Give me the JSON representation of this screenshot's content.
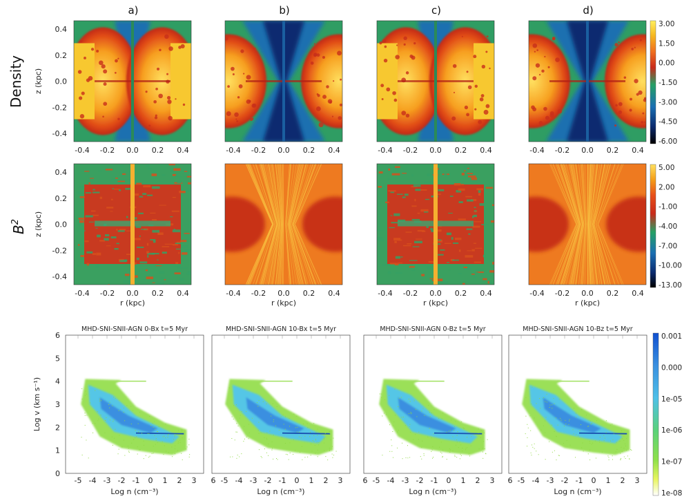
{
  "column_labels": [
    "a)",
    "b)",
    "c)",
    "d)"
  ],
  "row_labels": {
    "density": "Density",
    "bsq_base": "B",
    "bsq_sup": "2"
  },
  "maps": {
    "x_ticks": [
      "-0.4",
      "-0.2",
      "0.0",
      "0.2",
      "0.4"
    ],
    "z_ticks": [
      "0.4",
      "0.2",
      "0.0",
      "-0.2",
      "-0.4"
    ],
    "z_label": "z (kpc)",
    "r_label": "r (kpc)"
  },
  "colorbars": {
    "density": [
      "3.00",
      "1.50",
      "0.00",
      "-1.50",
      "-3.00",
      "-4.50",
      "-6.00"
    ],
    "bsq": [
      "5.00",
      "2.00",
      "-1.00",
      "-4.00",
      "-7.00",
      "-10.00",
      "-13.00"
    ],
    "phase": [
      "0.001",
      "0.000",
      "1e-05",
      "1e-06",
      "1e-07",
      "1e-08"
    ]
  },
  "colors": {
    "density_map": [
      "#000000",
      "#0b2a6e",
      "#1a6fb3",
      "#25a065",
      "#c92a1a",
      "#f07020",
      "#f6b820",
      "#fff060"
    ],
    "bsq_map": [
      "#000000",
      "#0b2a6e",
      "#1a6fb3",
      "#25a065",
      "#c92a1a",
      "#e8501a",
      "#f5a01a",
      "#ffe060"
    ],
    "phase_map": [
      "#ffffff",
      "#e8f560",
      "#8ee04a",
      "#5ad27a",
      "#4ec0e8",
      "#3a90e0",
      "#1050d0"
    ]
  },
  "phase": {
    "titles": [
      "MHD-SNI-SNII-AGN 0-Bx   t=5 Myr",
      "MHD-SNI-SNII-AGN 10-Bx   t=5 Myr",
      "MHD-SNI-SNII-AGN 0-Bz   t=5 Myr",
      "MHD-SNI-SNII-AGN 10-Bz   t=5 Myr"
    ],
    "y_ticks": [
      "6",
      "5",
      "4",
      "3",
      "2",
      "1",
      "0"
    ],
    "x_ticks_first": [
      "-5",
      "-4",
      "-3",
      "-2",
      "-1",
      "0",
      "1",
      "2",
      "3"
    ],
    "x_ticks_other": [
      "6",
      "-5",
      "-4",
      "-3",
      "-2",
      "-1",
      "0",
      "1",
      "2",
      "3"
    ],
    "y_label": "Log v (km s⁻¹)",
    "x_label": "Log n (cm⁻³)"
  }
}
